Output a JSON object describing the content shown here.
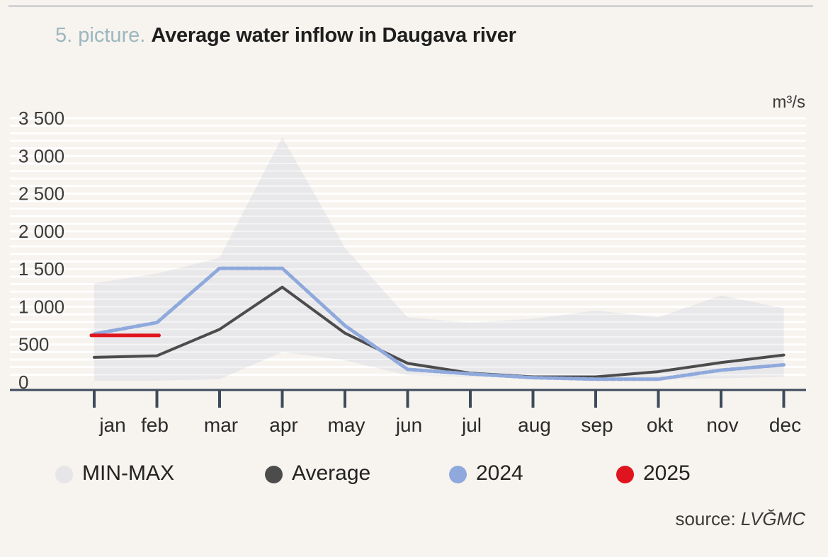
{
  "title": {
    "prefix": "5. picture.",
    "text": "Average water inflow in Daugava river"
  },
  "unit": "m³/s",
  "source": {
    "label": "source:",
    "name": "LVĞMC"
  },
  "colors": {
    "minmax": "#e8e8ea",
    "average": "#4c4c4c",
    "y2024": "#8fa9dc",
    "y2025": "#e0141e",
    "axis": "#3d4b5c",
    "grid": "#ffffff"
  },
  "legend": [
    {
      "label": "MIN-MAX",
      "color": "#e6e6e8"
    },
    {
      "label": "Average",
      "color": "#4c4c4c"
    },
    {
      "label": "2024",
      "color": "#8fa9dc"
    },
    {
      "label": "2025",
      "color": "#e0141e"
    }
  ],
  "chart_data": {
    "type": "line",
    "title": "Average water inflow in Daugava river",
    "ylabel": "m³/s",
    "xlabel": "",
    "categories": [
      "jan",
      "feb",
      "mar",
      "apr",
      "may",
      "jun",
      "jul",
      "aug",
      "sep",
      "okt",
      "nov",
      "dec"
    ],
    "y_ticks": [
      0,
      500,
      1000,
      1500,
      2000,
      2500,
      3000,
      3500
    ],
    "y_tick_labels": [
      "0",
      "500",
      "1 000",
      "1 500",
      "2 000",
      "2 500",
      "3 000",
      "3 500"
    ],
    "ylim": [
      0,
      3500
    ],
    "grid": true,
    "legend_position": "bottom",
    "band": {
      "name": "MIN-MAX",
      "min": [
        20,
        20,
        40,
        400,
        290,
        90,
        70,
        70,
        50,
        40,
        50,
        70
      ],
      "max": [
        1310,
        1440,
        1650,
        3250,
        1780,
        860,
        790,
        840,
        950,
        860,
        1150,
        980
      ]
    },
    "series": [
      {
        "name": "Average",
        "style": "solid",
        "values": [
          330,
          350,
          700,
          1260,
          650,
          250,
          120,
          70,
          70,
          140,
          260,
          360
        ]
      },
      {
        "name": "2024",
        "style": "dashed",
        "values": [
          640,
          790,
          1510,
          1510,
          750,
          170,
          110,
          60,
          40,
          40,
          160,
          230
        ]
      },
      {
        "name": "2025",
        "style": "solid",
        "values": [
          620,
          620,
          null,
          null,
          null,
          null,
          null,
          null,
          null,
          null,
          null,
          null
        ]
      }
    ]
  }
}
